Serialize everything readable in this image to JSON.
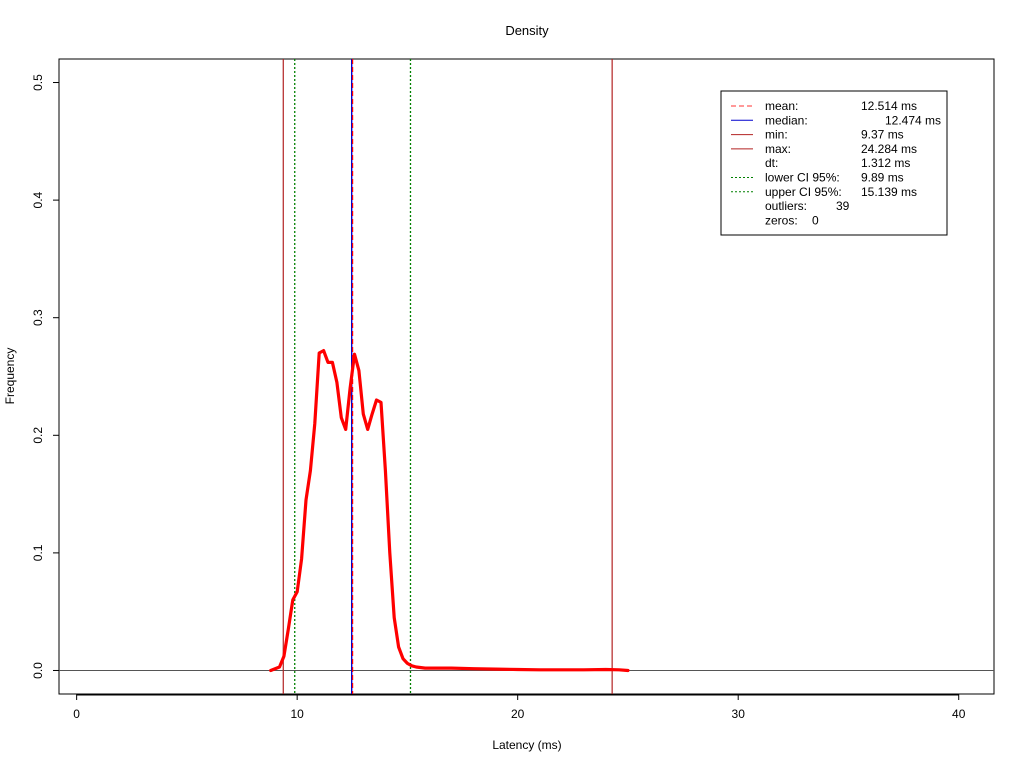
{
  "chart_data": {
    "type": "line",
    "title": "Density",
    "xlabel": "Latency (ms)",
    "ylabel": "Frequency",
    "xlim": [
      -0.8,
      41.6
    ],
    "ylim": [
      -0.02,
      0.52
    ],
    "x_ticks": [
      0,
      10,
      20,
      30,
      40
    ],
    "y_ticks": [
      0.0,
      0.1,
      0.2,
      0.3,
      0.4,
      0.5
    ],
    "grid": false,
    "legend_position": "top-right",
    "colors": {
      "density": "#ff0000",
      "mean": "#ff0000",
      "median": "#0000cd",
      "minmax": "#b22222",
      "ci": "#008000",
      "baseline": "#555555"
    },
    "series": [
      {
        "x": [
          8.8,
          9.2,
          9.4,
          9.6,
          9.8,
          10.0,
          10.2,
          10.4,
          10.6,
          10.8,
          11.0,
          11.2,
          11.4,
          11.6,
          11.8,
          12.0,
          12.2,
          12.4,
          12.6,
          12.8,
          13.0,
          13.2,
          13.4,
          13.6,
          13.8,
          14.0,
          14.2,
          14.4,
          14.6,
          14.8,
          15.0,
          15.2,
          15.4,
          15.8,
          16.4,
          17.0,
          18.0,
          19.0,
          20.0,
          21.0,
          22.0,
          23.0,
          24.0,
          24.6,
          25.0
        ],
        "values": [
          0.0,
          0.003,
          0.012,
          0.035,
          0.06,
          0.067,
          0.095,
          0.145,
          0.17,
          0.21,
          0.27,
          0.272,
          0.262,
          0.262,
          0.245,
          0.215,
          0.205,
          0.24,
          0.269,
          0.255,
          0.218,
          0.205,
          0.218,
          0.23,
          0.228,
          0.17,
          0.1,
          0.045,
          0.02,
          0.01,
          0.006,
          0.004,
          0.003,
          0.002,
          0.002,
          0.002,
          0.0015,
          0.0012,
          0.0008,
          0.0006,
          0.0006,
          0.0006,
          0.0008,
          0.0006,
          0.0
        ]
      }
    ],
    "vlines": {
      "min": 9.37,
      "lower_ci": 9.89,
      "median": 12.474,
      "mean": 12.514,
      "upper_ci": 15.139,
      "max": 24.284
    },
    "legend": [
      {
        "label": "mean:",
        "value": "12.514 ms",
        "style": "dashed",
        "color": "#ff3333"
      },
      {
        "label": "median:",
        "value": "12.474 ms",
        "style": "solid",
        "color": "#0000cd"
      },
      {
        "label": "min:",
        "value": "9.37 ms",
        "style": "solid",
        "color": "#b22222"
      },
      {
        "label": "max:",
        "value": "24.284 ms",
        "style": "solid",
        "color": "#b22222"
      },
      {
        "label": "dt:",
        "value": "1.312 ms",
        "style": "none",
        "color": ""
      },
      {
        "label": "lower CI 95%:",
        "value": "9.89 ms",
        "style": "dotted",
        "color": "#008000"
      },
      {
        "label": "upper CI 95%:",
        "value": "15.139 ms",
        "style": "dotted",
        "color": "#008000"
      },
      {
        "label": "outliers:",
        "value": "39",
        "style": "none",
        "color": ""
      },
      {
        "label": "zeros:",
        "value": "0",
        "style": "none",
        "color": ""
      }
    ]
  }
}
